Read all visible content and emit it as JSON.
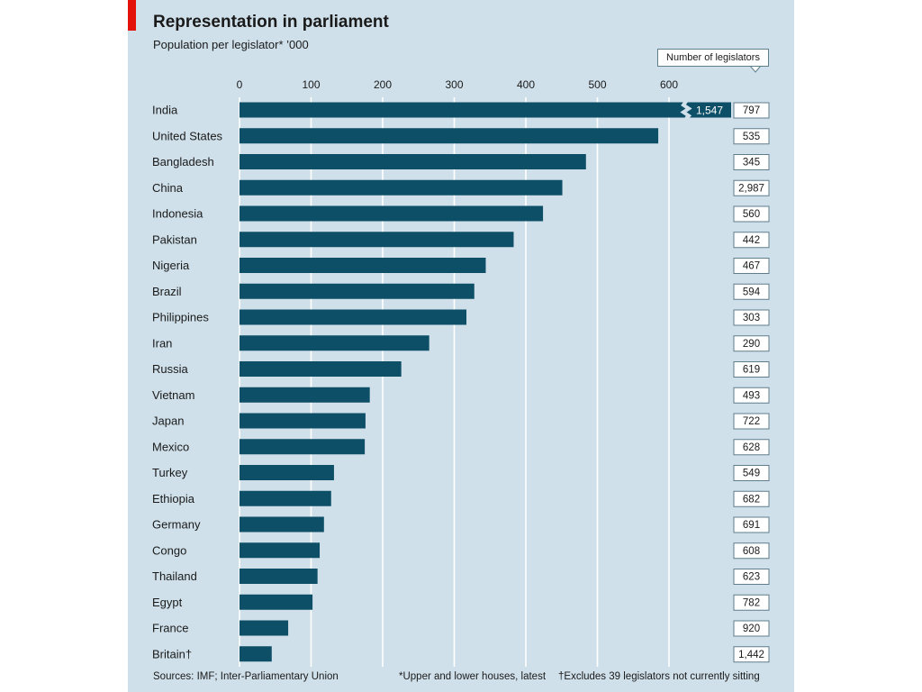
{
  "title": "Representation in parliament",
  "subtitle": "Population per legislator* ’000",
  "legend_label": "Number of legislators",
  "source": "Sources: IMF; Inter-Parliamentary Union",
  "footnote_1": "*Upper and lower houses, latest",
  "footnote_2": "†Excludes 39 legislators not currently sitting",
  "colors": {
    "bar": "#0e4f68",
    "background": "#cfe0ea",
    "accent": "#e3120b"
  },
  "chart_data": {
    "type": "bar",
    "orientation": "horizontal",
    "title": "Representation in parliament",
    "subtitle": "Population per legislator* ’000",
    "xlim": [
      0,
      600
    ],
    "xticks": [
      "0",
      "100",
      "200",
      "300",
      "400",
      "500",
      "600"
    ],
    "grid": true,
    "categories": [
      "India",
      "United States",
      "Bangladesh",
      "China",
      "Indonesia",
      "Pakistan",
      "Nigeria",
      "Brazil",
      "Philippines",
      "Iran",
      "Russia",
      "Vietnam",
      "Japan",
      "Mexico",
      "Turkey",
      "Ethiopia",
      "Germany",
      "Congo",
      "Thailand",
      "Egypt",
      "France",
      "Britain†"
    ],
    "values": [
      1547,
      585,
      484,
      451,
      424,
      383,
      344,
      328,
      317,
      265,
      226,
      182,
      176,
      175,
      132,
      128,
      118,
      112,
      109,
      102,
      68,
      45
    ],
    "value_labels": [
      "1,547",
      "",
      "",
      "",
      "",
      "",
      "",
      "",
      "",
      "",
      "",
      "",
      "",
      "",
      "",
      "",
      "",
      "",
      "",
      "",
      "",
      ""
    ],
    "legislators": [
      "797",
      "535",
      "345",
      "2,987",
      "560",
      "442",
      "467",
      "594",
      "303",
      "290",
      "619",
      "493",
      "722",
      "628",
      "549",
      "682",
      "691",
      "608",
      "623",
      "782",
      "920",
      "1,442"
    ]
  }
}
